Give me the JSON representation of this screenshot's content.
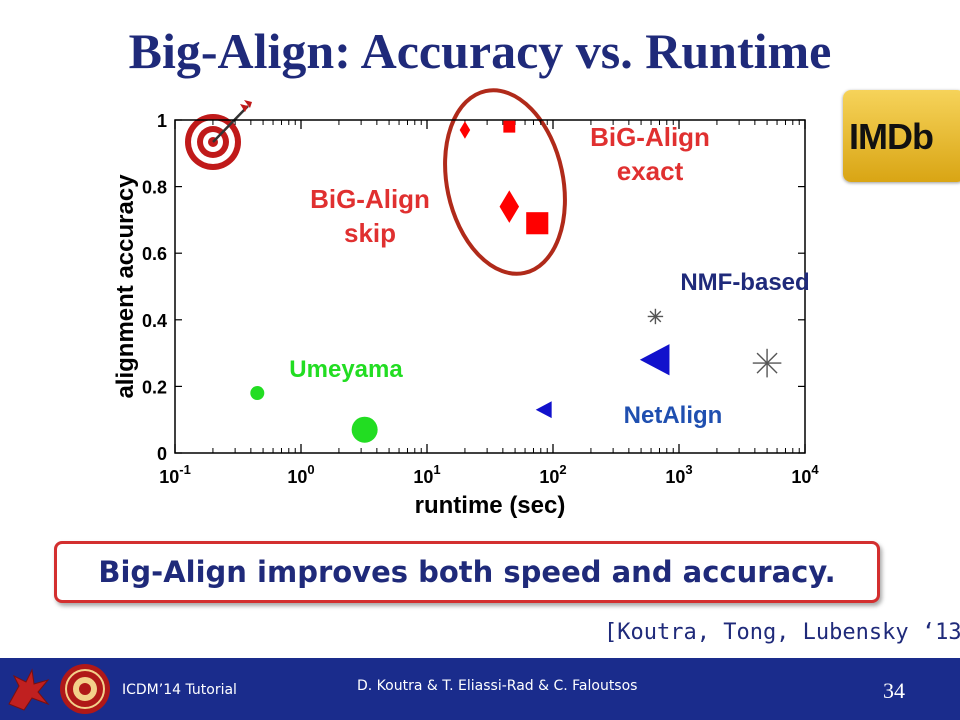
{
  "slide": {
    "title": "Big-Align: Accuracy vs. Runtime",
    "summary": "Big-Align improves both speed and accuracy.",
    "citation": "[Koutra, Tong, Lubensky ‘13]",
    "imdb_logo_text": "IMDb",
    "footer": {
      "left": "ICDM’14 Tutorial",
      "center": "D. Koutra & T. Eliassi-Rad & C. Faloutsos",
      "page_number": "34"
    }
  },
  "chart_data": {
    "type": "scatter",
    "xlabel": "runtime (sec)",
    "ylabel": "alignment accuracy",
    "xscale": "log",
    "xlim": [
      0.1,
      10000
    ],
    "ylim": [
      0,
      1
    ],
    "xtick_bases": [
      "10",
      "10",
      "10",
      "10",
      "10",
      "10"
    ],
    "xtick_exponents": [
      "-1",
      "0",
      "1",
      "2",
      "3",
      "4"
    ],
    "xtick_values": [
      0.1,
      1,
      10,
      100,
      1000,
      10000
    ],
    "ytick_labels": [
      "0",
      "0.2",
      "0.4",
      "0.6",
      "0.8",
      "1"
    ],
    "ytick_values": [
      0,
      0.2,
      0.4,
      0.6,
      0.8,
      1
    ],
    "grid": false,
    "series": [
      {
        "group": "Umeyama",
        "color": "#22dd22",
        "marker": "circle",
        "points": [
          {
            "x": 0.45,
            "y": 0.18,
            "size": "small"
          },
          {
            "x": 3.2,
            "y": 0.07,
            "size": "large"
          }
        ]
      },
      {
        "group": "BiG-Align skip",
        "color": "#ff0000",
        "marker": "diamond",
        "points": [
          {
            "x": 20,
            "y": 0.97,
            "size": "small"
          },
          {
            "x": 45,
            "y": 0.74,
            "size": "large"
          }
        ]
      },
      {
        "group": "BiG-Align exact",
        "color": "#ff0000",
        "marker": "square",
        "points": [
          {
            "x": 45,
            "y": 0.98,
            "size": "small"
          },
          {
            "x": 75,
            "y": 0.69,
            "size": "large"
          }
        ]
      },
      {
        "group": "NetAlign",
        "color": "#1111cc",
        "marker": "triangle-left",
        "points": [
          {
            "x": 85,
            "y": 0.13,
            "size": "small"
          },
          {
            "x": 650,
            "y": 0.28,
            "size": "large"
          }
        ]
      },
      {
        "group": "NMF-based",
        "color": "#555555",
        "marker": "asterisk",
        "points": [
          {
            "x": 650,
            "y": 0.41,
            "size": "small"
          },
          {
            "x": 5000,
            "y": 0.27,
            "size": "large"
          }
        ]
      }
    ],
    "annotations": [
      {
        "lines": [
          "BiG-Align",
          "exact"
        ],
        "color": "#e03030"
      },
      {
        "lines": [
          "BiG-Align",
          "skip"
        ],
        "color": "#e03030"
      },
      {
        "lines": [
          "NMF-based"
        ],
        "color": "#1f2a7a"
      },
      {
        "lines": [
          "Umeyama"
        ],
        "color": "#22dd22"
      },
      {
        "lines": [
          "NetAlign"
        ],
        "color": "#1f4fb0"
      }
    ]
  }
}
